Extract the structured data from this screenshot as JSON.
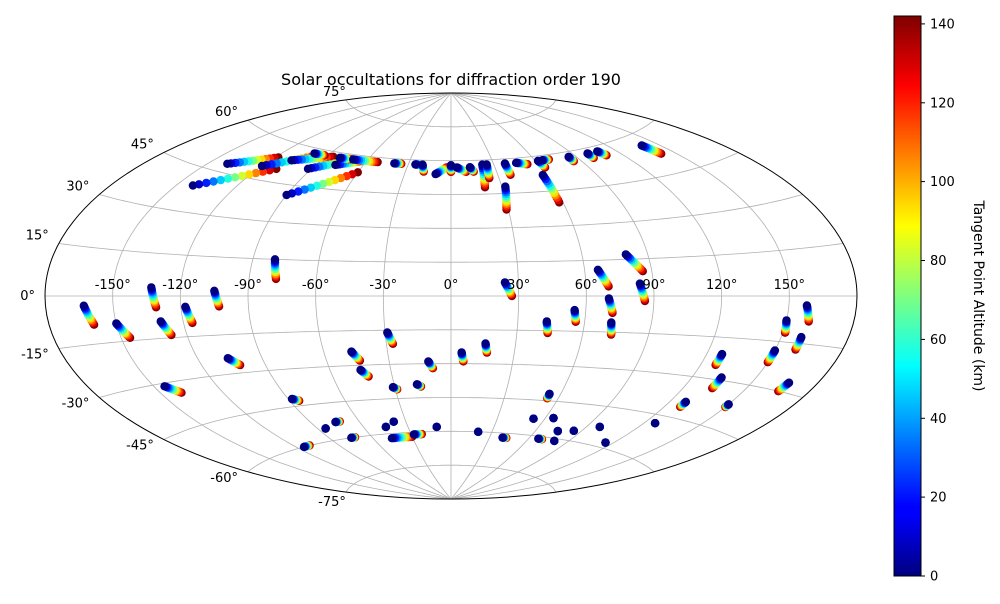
{
  "chart_data": {
    "type": "scatter",
    "projection": "aitoff",
    "title": "Solar occultations for diffraction order 190",
    "grid": true,
    "lon_ticks": [
      {
        "value": -150,
        "label": "-150°"
      },
      {
        "value": -120,
        "label": "-120°"
      },
      {
        "value": -90,
        "label": "-90°"
      },
      {
        "value": -60,
        "label": "-60°"
      },
      {
        "value": -30,
        "label": "-30°"
      },
      {
        "value": 0,
        "label": "0°"
      },
      {
        "value": 30,
        "label": "30°"
      },
      {
        "value": 60,
        "label": "60°"
      },
      {
        "value": 90,
        "label": "90°"
      },
      {
        "value": 120,
        "label": "120°"
      },
      {
        "value": 150,
        "label": "150°"
      }
    ],
    "lat_ticks": [
      {
        "value": 75,
        "label": "75°"
      },
      {
        "value": 60,
        "label": "60°"
      },
      {
        "value": 45,
        "label": "45°"
      },
      {
        "value": 30,
        "label": "30°"
      },
      {
        "value": 15,
        "label": "15°"
      },
      {
        "value": 0,
        "label": "0°"
      },
      {
        "value": -15,
        "label": "-15°"
      },
      {
        "value": -30,
        "label": "-30°"
      },
      {
        "value": -45,
        "label": "-45°"
      },
      {
        "value": -60,
        "label": "-60°"
      },
      {
        "value": -75,
        "label": "-75°"
      }
    ],
    "colorbar": {
      "label": "Tangent Point Altitude (km)",
      "range": [
        0,
        142
      ],
      "ticks": [
        0,
        20,
        40,
        60,
        80,
        100,
        120,
        140
      ],
      "colormap": "jet"
    },
    "tracks": [
      {
        "start": [
          -140,
          48
        ],
        "end": [
          -118,
          54
        ]
      },
      {
        "start": [
          -142,
          39
        ],
        "end": [
          -110,
          50
        ]
      },
      {
        "start": [
          -120,
          50
        ],
        "end": [
          -95,
          58
        ]
      },
      {
        "start": [
          -108,
          54
        ],
        "end": [
          -85,
          58
        ]
      },
      {
        "start": [
          -100,
          58
        ],
        "end": [
          -92,
          58
        ]
      },
      {
        "start": [
          -92,
          52
        ],
        "end": [
          -70,
          58
        ]
      },
      {
        "start": [
          -90,
          41
        ],
        "end": [
          -60,
          53
        ]
      },
      {
        "start": [
          -78,
          55
        ],
        "end": [
          -62,
          58
        ]
      },
      {
        "start": [
          -80,
          58
        ],
        "end": [
          -72,
          58
        ]
      },
      {
        "start": [
          -70,
          58
        ],
        "end": [
          -52,
          58
        ]
      },
      {
        "start": [
          -40,
          58
        ],
        "end": [
          -35,
          58
        ]
      },
      {
        "start": [
          -25,
          58
        ],
        "end": [
          -20,
          58
        ]
      },
      {
        "start": [
          -20,
          58
        ],
        "end": [
          -18,
          55
        ]
      },
      {
        "start": [
          -10,
          54
        ],
        "end": [
          -3,
          57
        ]
      },
      {
        "start": [
          0,
          58
        ],
        "end": [
          0,
          55
        ]
      },
      {
        "start": [
          4,
          57
        ],
        "end": [
          10,
          55
        ]
      },
      {
        "start": [
          13,
          57
        ],
        "end": [
          15,
          55
        ]
      },
      {
        "start": [
          22,
          58
        ],
        "end": [
          20,
          48
        ]
      },
      {
        "start": [
          25,
          58
        ],
        "end": [
          24,
          52
        ]
      },
      {
        "start": [
          32,
          48
        ],
        "end": [
          29,
          38
        ]
      },
      {
        "start": [
          38,
          58
        ],
        "end": [
          38,
          53
        ]
      },
      {
        "start": [
          46,
          58
        ],
        "end": [
          53,
          57
        ]
      },
      {
        "start": [
          58,
          52
        ],
        "end": [
          58,
          40
        ]
      },
      {
        "start": [
          62,
          58
        ],
        "end": [
          63,
          55
        ]
      },
      {
        "start": [
          65,
          58
        ],
        "end": [
          70,
          58
        ]
      },
      {
        "start": [
          85,
          58
        ],
        "end": [
          85,
          56
        ]
      },
      {
        "start": [
          100,
          58
        ],
        "end": [
          100,
          56
        ]
      },
      {
        "start": [
          108,
          58
        ],
        "end": [
          110,
          56
        ]
      },
      {
        "start": [
          140,
          56
        ],
        "end": [
          142,
          52
        ]
      },
      {
        "start": [
          -80,
          15
        ],
        "end": [
          -78,
          7
        ]
      },
      {
        "start": [
          -163,
          -3
        ],
        "end": [
          -160,
          -9
        ]
      },
      {
        "start": [
          -150,
          -9
        ],
        "end": [
          -146,
          -14
        ]
      },
      {
        "start": [
          -133,
          3
        ],
        "end": [
          -131,
          -4
        ]
      },
      {
        "start": [
          -130,
          -9
        ],
        "end": [
          -127,
          -14
        ]
      },
      {
        "start": [
          -118,
          -4
        ],
        "end": [
          -116,
          -10
        ]
      },
      {
        "start": [
          -105,
          2
        ],
        "end": [
          -103,
          -4
        ]
      },
      {
        "start": [
          -106,
          -24
        ],
        "end": [
          -102,
          -27
        ]
      },
      {
        "start": [
          -145,
          -31
        ],
        "end": [
          -140,
          -34
        ]
      },
      {
        "start": [
          -47,
          -24
        ],
        "end": [
          -44,
          -28
        ]
      },
      {
        "start": [
          -45,
          -32
        ],
        "end": [
          -42,
          -35
        ]
      },
      {
        "start": [
          -29,
          -16
        ],
        "end": [
          -27,
          -21
        ]
      },
      {
        "start": [
          -11,
          -29
        ],
        "end": [
          -9,
          -32
        ]
      },
      {
        "start": [
          5,
          -25
        ],
        "end": [
          6,
          -29
        ]
      },
      {
        "start": [
          16,
          -21
        ],
        "end": [
          17,
          -25
        ]
      },
      {
        "start": [
          24,
          6
        ],
        "end": [
          27,
          0
        ]
      },
      {
        "start": [
          43,
          -11
        ],
        "end": [
          44,
          -16
        ]
      },
      {
        "start": [
          55,
          -6
        ],
        "end": [
          56,
          -11
        ]
      },
      {
        "start": [
          66,
          11
        ],
        "end": [
          70,
          4
        ]
      },
      {
        "start": [
          70,
          -1
        ],
        "end": [
          72,
          -7
        ]
      },
      {
        "start": [
          80,
          17
        ],
        "end": [
          86,
          10
        ]
      },
      {
        "start": [
          84,
          5
        ],
        "end": [
          86,
          -2
        ]
      },
      {
        "start": [
          72,
          -11
        ],
        "end": [
          73,
          -16
        ]
      },
      {
        "start": [
          134,
          -29
        ],
        "end": [
          134,
          -33
        ]
      },
      {
        "start": [
          150,
          -18
        ],
        "end": [
          150,
          -22
        ]
      },
      {
        "start": [
          150,
          -8
        ],
        "end": [
          151,
          -12
        ]
      },
      {
        "start": [
          159,
          -13
        ],
        "end": [
          159,
          -17
        ]
      },
      {
        "start": [
          158,
          -3
        ],
        "end": [
          160,
          -8
        ]
      },
      {
        "start": [
          167,
          -27
        ],
        "end": [
          166,
          -30
        ]
      },
      {
        "start": [
          127,
          -21
        ],
        "end": [
          127,
          -25
        ]
      },
      {
        "start": [
          -88,
          -42
        ],
        "end": [
          -85,
          -43
        ]
      },
      {
        "start": [
          -31,
          -40
        ],
        "end": [
          -29,
          -41
        ]
      },
      {
        "start": [
          -18,
          -39
        ],
        "end": [
          -16,
          -40
        ]
      },
      {
        "start": [
          -115,
          -60
        ],
        "end": [
          -110,
          -60
        ]
      },
      {
        "start": [
          -85,
          -55
        ],
        "end": [
          -85,
          -55
        ]
      },
      {
        "start": [
          -75,
          -53
        ],
        "end": [
          -72,
          -53
        ]
      },
      {
        "start": [
          -75,
          -60
        ],
        "end": [
          -72,
          -60
        ]
      },
      {
        "start": [
          -45,
          -57
        ],
        "end": [
          -45,
          -57
        ]
      },
      {
        "start": [
          -38,
          -55
        ],
        "end": [
          -38,
          -55
        ]
      },
      {
        "start": [
          -46,
          -62
        ],
        "end": [
          -30,
          -62
        ]
      },
      {
        "start": [
          -28,
          -61
        ],
        "end": [
          -22,
          -61
        ]
      },
      {
        "start": [
          -10,
          -58
        ],
        "end": [
          -10,
          -58
        ]
      },
      {
        "start": [
          20,
          -60
        ],
        "end": [
          20,
          -60
        ]
      },
      {
        "start": [
          40,
          -62
        ],
        "end": [
          43,
          -62
        ]
      },
      {
        "start": [
          54,
          -42
        ],
        "end": [
          54,
          -44
        ]
      },
      {
        "start": [
          53,
          -53
        ],
        "end": [
          53,
          -53
        ]
      },
      {
        "start": [
          65,
          -52
        ],
        "end": [
          65,
          -52
        ]
      },
      {
        "start": [
          67,
          -61
        ],
        "end": [
          70,
          -61
        ]
      },
      {
        "start": [
          75,
          -57
        ],
        "end": [
          75,
          -57
        ]
      },
      {
        "start": [
          80,
          -61
        ],
        "end": [
          80,
          -61
        ]
      },
      {
        "start": [
          85,
          -56
        ],
        "end": [
          85,
          -56
        ]
      },
      {
        "start": [
          98,
          -53
        ],
        "end": [
          98,
          -53
        ]
      },
      {
        "start": [
          115,
          -58
        ],
        "end": [
          115,
          -58
        ]
      },
      {
        "start": [
          126,
          -48
        ],
        "end": [
          126,
          -48
        ]
      },
      {
        "start": [
          128,
          -39
        ],
        "end": [
          128,
          -41
        ]
      },
      {
        "start": [
          150,
          -37
        ],
        "end": [
          150,
          -38
        ]
      }
    ]
  }
}
